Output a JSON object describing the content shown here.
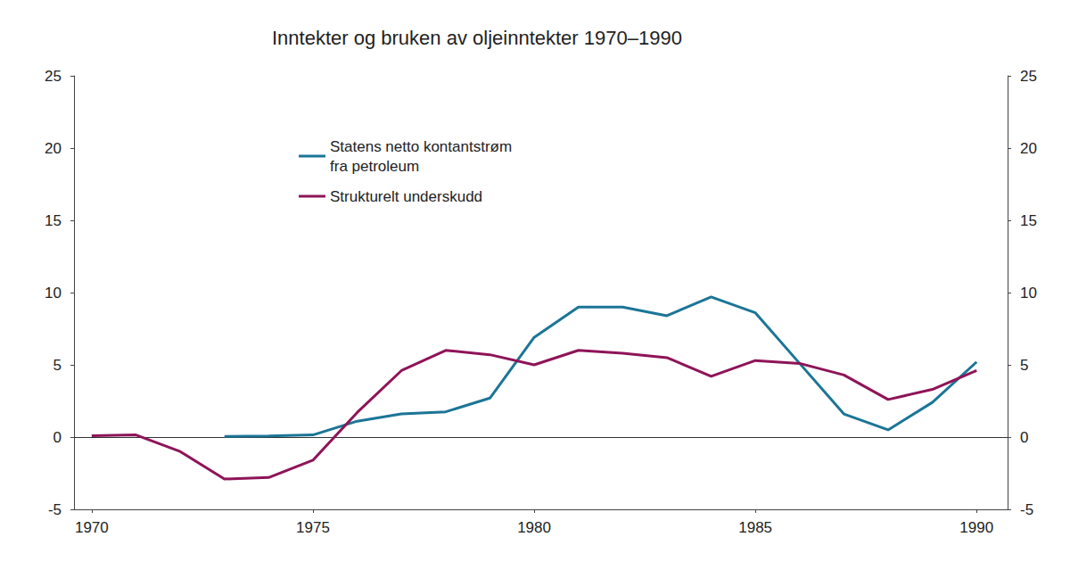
{
  "chart_data": {
    "type": "line",
    "title": "Inntekter og bruken av oljeinntekter 1970–1990",
    "x": [
      1970,
      1971,
      1972,
      1973,
      1974,
      1975,
      1976,
      1977,
      1978,
      1979,
      1980,
      1981,
      1982,
      1983,
      1984,
      1985,
      1986,
      1987,
      1988,
      1989,
      1990
    ],
    "series": [
      {
        "name": "Statens netto kontantstrøm\nfra petroleum",
        "color": "#1b7596",
        "values": [
          null,
          null,
          null,
          0.05,
          0.07,
          0.15,
          1.1,
          1.6,
          1.75,
          2.7,
          6.9,
          9.0,
          9.0,
          8.4,
          9.7,
          8.6,
          5.1,
          1.6,
          0.5,
          2.4,
          5.2
        ]
      },
      {
        "name": "Strukturelt underskudd",
        "color": "#8e1458",
        "values": [
          0.1,
          0.15,
          -1.0,
          -2.9,
          -2.8,
          -1.6,
          1.7,
          4.6,
          6.0,
          5.7,
          5.0,
          6.0,
          5.8,
          5.5,
          4.2,
          5.3,
          5.1,
          4.3,
          2.6,
          3.3,
          4.6
        ]
      }
    ],
    "xlim": [
      1969.6,
      1990.7
    ],
    "xticks": [
      1970,
      1975,
      1980,
      1985,
      1990
    ],
    "ylim": [
      -5,
      25
    ],
    "yticks": [
      -5,
      0,
      5,
      10,
      15,
      20,
      25
    ],
    "y2lim": [
      -5,
      25
    ],
    "y2ticks": [
      -5,
      0,
      5,
      10,
      15,
      20,
      25
    ],
    "grid": false,
    "legend": "top-left"
  }
}
